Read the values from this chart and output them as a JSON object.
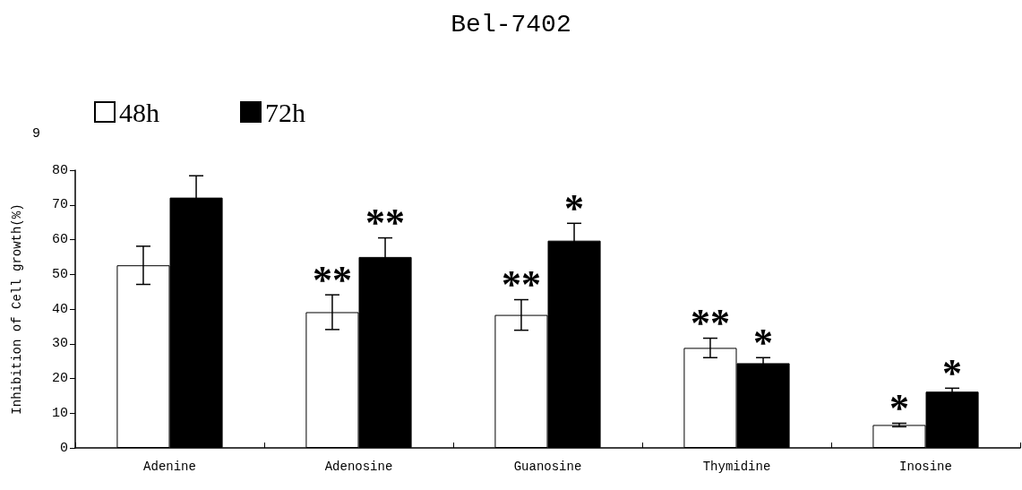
{
  "chart_data": {
    "type": "bar",
    "title": "Bel-7402",
    "ylabel": "Inhibition of Cell growth(%)",
    "categories": [
      "Adenine",
      "Adenosine",
      "Guanosine",
      "Thymidine",
      "Inosine"
    ],
    "series": [
      {
        "name": "48h",
        "color": "#ffffff",
        "values": [
          52.6,
          39.1,
          38.3,
          28.8,
          6.6
        ],
        "errors": [
          5.5,
          5,
          4.4,
          2.8,
          0.5
        ],
        "value_labels": [
          null,
          "**",
          "**",
          "**",
          "*"
        ]
      },
      {
        "name": "72h",
        "color": "#000000",
        "values": [
          72.1,
          55,
          59.7,
          24.4,
          16.2
        ],
        "errors": [
          6.3,
          5.5,
          5,
          1.6,
          1
        ],
        "value_labels": [
          null,
          "**",
          "*",
          "*",
          "*"
        ]
      }
    ],
    "ylim": [
      0,
      80
    ],
    "yticks": [
      0,
      10,
      20,
      30,
      40,
      50,
      60,
      70,
      80
    ],
    "annotations": [
      "9"
    ],
    "grid": false,
    "legend": "top left"
  }
}
